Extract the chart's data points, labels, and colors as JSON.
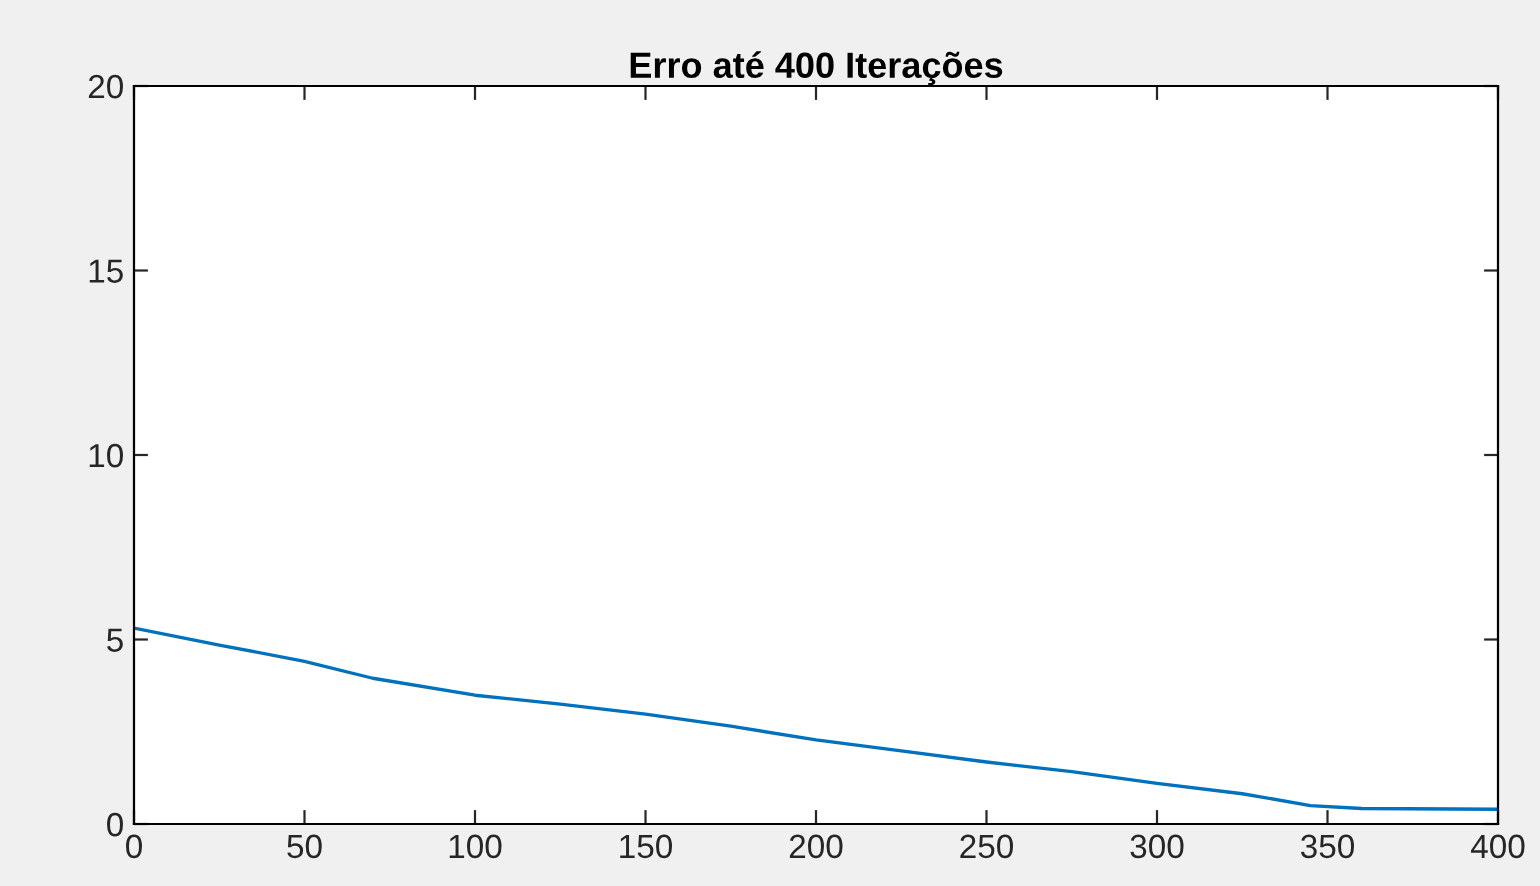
{
  "chart_data": {
    "type": "line",
    "title": "Erro até 400 Iterações",
    "x": [
      0,
      25,
      50,
      70,
      100,
      125,
      150,
      175,
      200,
      225,
      250,
      275,
      300,
      325,
      345,
      360,
      400
    ],
    "series": [
      {
        "color": "#0072bd",
        "values": [
          5.31,
          4.85,
          4.41,
          3.95,
          3.49,
          3.25,
          2.98,
          2.65,
          2.28,
          1.98,
          1.68,
          1.42,
          1.1,
          0.82,
          0.5,
          0.42,
          0.4
        ]
      }
    ],
    "xlim": [
      0,
      400
    ],
    "xticks": [
      0,
      50,
      100,
      150,
      200,
      250,
      300,
      350,
      400
    ],
    "ylim": [
      0,
      20
    ],
    "yticks": [
      0,
      5,
      10,
      15,
      20
    ],
    "grid": false,
    "legend": false
  }
}
